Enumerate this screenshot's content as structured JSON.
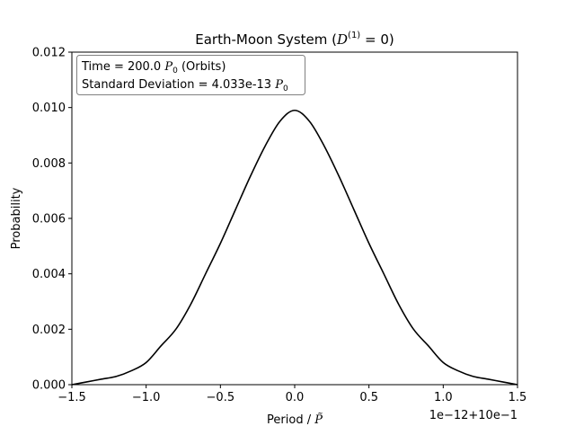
{
  "chart_data": {
    "type": "line",
    "title": {
      "prefix": "Earth-Moon System (",
      "math_base": "D",
      "math_sup": "(1)",
      "math_rest": " = 0",
      "suffix": ")"
    },
    "xlabel": {
      "text": "Period / ",
      "symbol": "P̃"
    },
    "ylabel": "Probability",
    "x_offset_label": "1e−12+10e−1",
    "xlim": [
      -1.5,
      1.5
    ],
    "ylim": [
      0,
      0.012
    ],
    "x_ticks": [
      "−1.5",
      "−1.0",
      "−0.5",
      "0.0",
      "0.5",
      "1.0",
      "1.5"
    ],
    "x_tick_values": [
      -1.5,
      -1.0,
      -0.5,
      0.0,
      0.5,
      1.0,
      1.5
    ],
    "y_ticks": [
      "0.000",
      "0.002",
      "0.004",
      "0.006",
      "0.008",
      "0.010",
      "0.012"
    ],
    "y_tick_values": [
      0,
      0.002,
      0.004,
      0.006,
      0.008,
      0.01,
      0.012
    ],
    "grid": false,
    "annotation": {
      "line1": {
        "text": "Time = 200.0 ",
        "symbol": "P",
        "sub": "0",
        "tail": " (Orbits)"
      },
      "line2": {
        "text": "Standard Deviation = 4.033e-13 ",
        "symbol": "P",
        "sub": "0",
        "tail": ""
      },
      "placement": "top-left"
    },
    "series": [
      {
        "color": "#000000",
        "x": [
          -1.5,
          -1.4,
          -1.3,
          -1.2,
          -1.1,
          -1.0,
          -0.9,
          -0.8,
          -0.7,
          -0.6,
          -0.5,
          -0.4,
          -0.3,
          -0.2,
          -0.1,
          0.0,
          0.1,
          0.2,
          0.3,
          0.4,
          0.5,
          0.6,
          0.7,
          0.8,
          0.9,
          1.0,
          1.1,
          1.2,
          1.3,
          1.4,
          1.5
        ],
        "y": [
          0.0,
          0.0001,
          0.0002,
          0.0003,
          0.0005,
          0.0008,
          0.0014,
          0.002,
          0.0029,
          0.004,
          0.0051,
          0.0063,
          0.0075,
          0.0086,
          0.0095,
          0.0099,
          0.0095,
          0.0086,
          0.0075,
          0.0063,
          0.0051,
          0.004,
          0.0029,
          0.002,
          0.0014,
          0.0008,
          0.0005,
          0.0003,
          0.0002,
          0.0001,
          0.0
        ]
      }
    ]
  }
}
